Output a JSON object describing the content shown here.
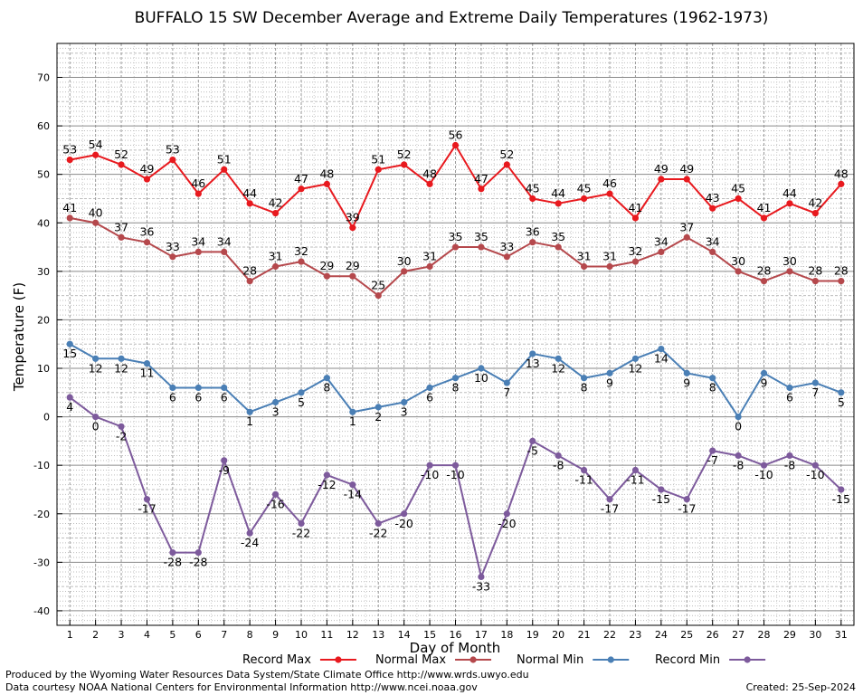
{
  "chart_data": {
    "type": "line",
    "title": "BUFFALO 15 SW December Average and Extreme Daily Temperatures (1962-1973)",
    "xlabel": "Day of Month",
    "ylabel": "Temperature (F)",
    "xlim": [
      1,
      31
    ],
    "ylim": [
      -43,
      77
    ],
    "yticks": [
      -40,
      -30,
      -20,
      -10,
      0,
      10,
      20,
      30,
      40,
      50,
      60,
      70
    ],
    "grid": true,
    "legend_position": "bottom",
    "x": [
      1,
      2,
      3,
      4,
      5,
      6,
      7,
      8,
      9,
      10,
      11,
      12,
      13,
      14,
      15,
      16,
      17,
      18,
      19,
      20,
      21,
      22,
      23,
      24,
      25,
      26,
      27,
      28,
      29,
      30,
      31
    ],
    "series": [
      {
        "name": "Record Max",
        "color": "#e8191e",
        "label_pos": "above",
        "values": [
          53,
          54,
          52,
          49,
          53,
          46,
          51,
          44,
          42,
          47,
          48,
          39,
          51,
          52,
          48,
          56,
          47,
          52,
          45,
          44,
          45,
          46,
          41,
          49,
          49,
          43,
          45,
          41,
          44,
          42,
          48
        ]
      },
      {
        "name": "Normal Max",
        "color": "#b5484c",
        "label_pos": "above",
        "values": [
          41,
          40,
          37,
          36,
          33,
          34,
          34,
          28,
          31,
          32,
          29,
          29,
          25,
          30,
          31,
          35,
          35,
          33,
          36,
          35,
          31,
          31,
          32,
          34,
          37,
          34,
          30,
          28,
          30,
          28,
          28
        ]
      },
      {
        "name": "Normal Min",
        "color": "#4a7fb5",
        "label_pos": "below",
        "values": [
          15,
          12,
          12,
          11,
          6,
          6,
          6,
          1,
          3,
          5,
          8,
          1,
          2,
          3,
          6,
          8,
          10,
          7,
          13,
          12,
          8,
          9,
          12,
          14,
          9,
          8,
          0,
          9,
          6,
          7,
          5
        ]
      },
      {
        "name": "Record Min",
        "color": "#7d5a9c",
        "label_pos": "below",
        "values": [
          4,
          0,
          -2,
          -17,
          -28,
          -28,
          -9,
          -24,
          -16,
          -22,
          -12,
          -14,
          -22,
          -20,
          -10,
          -10,
          -33,
          -20,
          -5,
          -8,
          -11,
          -17,
          -11,
          -15,
          -17,
          -7,
          -8,
          -10,
          -8,
          -10,
          -15
        ]
      }
    ]
  },
  "footer": {
    "produced_by": "Produced by the Wyoming Water Resources Data System/State Climate Office http://www.wrds.uwyo.edu",
    "courtesy": "Data courtesy NOAA National Centers for Environmental Information http://www.ncei.noaa.gov",
    "created": "Created: 25-Sep-2024"
  }
}
